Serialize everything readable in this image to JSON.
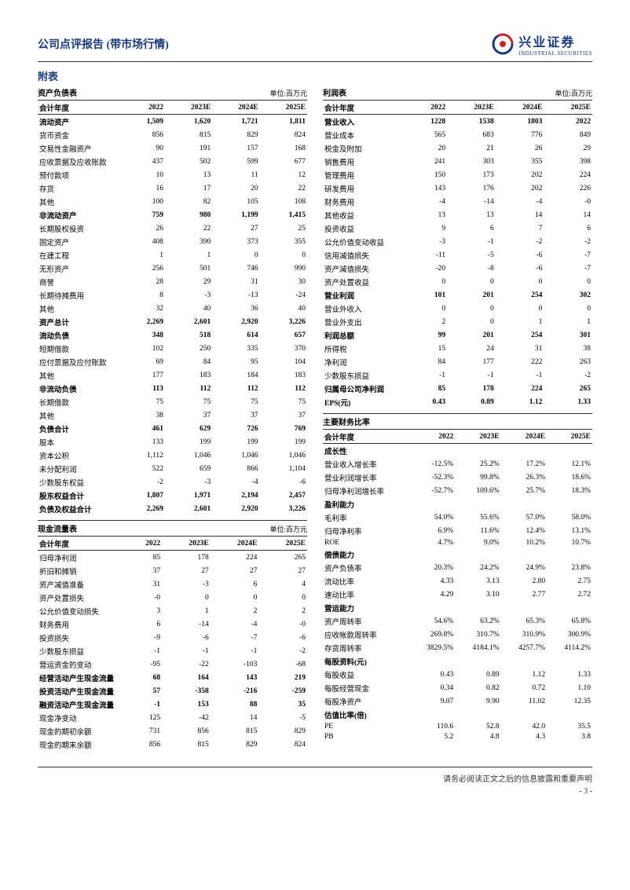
{
  "header": {
    "title": "公司点评报告 (带市场行情)",
    "logo_cn": "兴业证券",
    "logo_en": "INDUSTRIAL SECURITIES"
  },
  "appendix_title": "附表",
  "unit_label": "单位:百万元",
  "years": [
    "会计年度",
    "2022",
    "2023E",
    "2024E",
    "2025E"
  ],
  "balance_sheet": {
    "title": "资产负债表",
    "rows": [
      {
        "b": 1,
        "c": [
          "流动资产",
          "1,509",
          "1,620",
          "1,721",
          "1,811"
        ]
      },
      {
        "c": [
          "货币资金",
          "856",
          "815",
          "829",
          "824"
        ]
      },
      {
        "c": [
          "交易性金融资产",
          "90",
          "191",
          "157",
          "168"
        ]
      },
      {
        "c": [
          "应收票据及应收账款",
          "437",
          "502",
          "599",
          "677"
        ]
      },
      {
        "c": [
          "预付款项",
          "10",
          "13",
          "11",
          "12"
        ]
      },
      {
        "c": [
          "存货",
          "16",
          "17",
          "20",
          "22"
        ]
      },
      {
        "c": [
          "其他",
          "100",
          "82",
          "105",
          "108"
        ]
      },
      {
        "b": 1,
        "c": [
          "非流动资产",
          "759",
          "980",
          "1,199",
          "1,415"
        ]
      },
      {
        "c": [
          "长期股权投资",
          "26",
          "22",
          "27",
          "25"
        ]
      },
      {
        "c": [
          "固定资产",
          "408",
          "390",
          "373",
          "355"
        ]
      },
      {
        "c": [
          "在建工程",
          "1",
          "1",
          "0",
          "0"
        ]
      },
      {
        "c": [
          "无形资产",
          "256",
          "501",
          "746",
          "990"
        ]
      },
      {
        "c": [
          "商誉",
          "28",
          "29",
          "31",
          "30"
        ]
      },
      {
        "c": [
          "长期待摊费用",
          "8",
          "-3",
          "-13",
          "-24"
        ]
      },
      {
        "c": [
          "其他",
          "32",
          "40",
          "36",
          "40"
        ]
      },
      {
        "b": 1,
        "c": [
          "资产总计",
          "2,269",
          "2,601",
          "2,920",
          "3,226"
        ]
      },
      {
        "b": 1,
        "c": [
          "流动负债",
          "348",
          "518",
          "614",
          "657"
        ]
      },
      {
        "c": [
          "短期借款",
          "102",
          "250",
          "335",
          "370"
        ]
      },
      {
        "c": [
          "应付票据及应付账款",
          "69",
          "84",
          "95",
          "104"
        ]
      },
      {
        "c": [
          "其他",
          "177",
          "183",
          "184",
          "183"
        ]
      },
      {
        "b": 1,
        "c": [
          "非流动负债",
          "113",
          "112",
          "112",
          "112"
        ]
      },
      {
        "c": [
          "长期借款",
          "75",
          "75",
          "75",
          "75"
        ]
      },
      {
        "c": [
          "其他",
          "38",
          "37",
          "37",
          "37"
        ]
      },
      {
        "b": 1,
        "c": [
          "负债合计",
          "461",
          "629",
          "726",
          "769"
        ]
      },
      {
        "c": [
          "股本",
          "133",
          "199",
          "199",
          "199"
        ]
      },
      {
        "c": [
          "资本公积",
          "1,112",
          "1,046",
          "1,046",
          "1,046"
        ]
      },
      {
        "c": [
          "未分配利润",
          "522",
          "659",
          "866",
          "1,104"
        ]
      },
      {
        "c": [
          "少数股东权益",
          "-2",
          "-3",
          "-4",
          "-6"
        ]
      },
      {
        "b": 1,
        "c": [
          "股东权益合计",
          "1,807",
          "1,971",
          "2,194",
          "2,457"
        ]
      },
      {
        "b": 1,
        "c": [
          "负债及权益合计",
          "2,269",
          "2,601",
          "2,920",
          "3,226"
        ]
      }
    ]
  },
  "cash_flow": {
    "title": "现金流量表",
    "rows": [
      {
        "c": [
          "归母净利润",
          "85",
          "178",
          "224",
          "265"
        ]
      },
      {
        "c": [
          "折旧和摊销",
          "37",
          "27",
          "27",
          "27"
        ]
      },
      {
        "c": [
          "资产减值准备",
          "31",
          "-3",
          "6",
          "4"
        ]
      },
      {
        "c": [
          "资产处置损失",
          "-0",
          "0",
          "0",
          "0"
        ]
      },
      {
        "c": [
          "公允价值变动损失",
          "3",
          "1",
          "2",
          "2"
        ]
      },
      {
        "c": [
          "财务费用",
          "6",
          "-14",
          "-4",
          "-0"
        ]
      },
      {
        "c": [
          "投资损失",
          "-9",
          "-6",
          "-7",
          "-6"
        ]
      },
      {
        "c": [
          "少数股东损益",
          "-1",
          "-1",
          "-1",
          "-2"
        ]
      },
      {
        "c": [
          "营运资金的变动",
          "-95",
          "-22",
          "-103",
          "-68"
        ]
      },
      {
        "b": 1,
        "c": [
          "经营活动产生现金流量",
          "68",
          "164",
          "143",
          "219"
        ]
      },
      {
        "b": 1,
        "c": [
          "投资活动产生现金流量",
          "57",
          "-358",
          "-216",
          "-259"
        ]
      },
      {
        "b": 1,
        "c": [
          "融资活动产生现金流量",
          "-1",
          "153",
          "88",
          "35"
        ]
      },
      {
        "c": [
          "现金净变动",
          "125",
          "-42",
          "14",
          "-5"
        ]
      },
      {
        "c": [
          "现金的期初余额",
          "731",
          "856",
          "815",
          "829"
        ]
      },
      {
        "c": [
          "现金的期末余额",
          "856",
          "815",
          "829",
          "824"
        ]
      }
    ]
  },
  "income_statement": {
    "title": "利润表",
    "rows": [
      {
        "b": 1,
        "c": [
          "营业收入",
          "1228",
          "1538",
          "1803",
          "2022"
        ]
      },
      {
        "c": [
          "营业成本",
          "565",
          "683",
          "776",
          "849"
        ]
      },
      {
        "c": [
          "税金及附加",
          "20",
          "21",
          "26",
          "29"
        ]
      },
      {
        "c": [
          "销售费用",
          "241",
          "303",
          "355",
          "398"
        ]
      },
      {
        "c": [
          "管理费用",
          "150",
          "173",
          "202",
          "224"
        ]
      },
      {
        "c": [
          "研发费用",
          "143",
          "176",
          "202",
          "226"
        ]
      },
      {
        "c": [
          "财务费用",
          "-4",
          "-14",
          "-4",
          "-0"
        ]
      },
      {
        "c": [
          "其他收益",
          "13",
          "13",
          "14",
          "14"
        ]
      },
      {
        "c": [
          "投资收益",
          "9",
          "6",
          "7",
          "6"
        ]
      },
      {
        "c": [
          "公允价值变动收益",
          "-3",
          "-1",
          "-2",
          "-2"
        ]
      },
      {
        "c": [
          "信用减值损失",
          "-11",
          "-5",
          "-6",
          "-7"
        ]
      },
      {
        "c": [
          "资产减值损失",
          "-20",
          "-8",
          "-6",
          "-7"
        ]
      },
      {
        "c": [
          "资产处置收益",
          "0",
          "0",
          "0",
          "0"
        ]
      },
      {
        "b": 1,
        "c": [
          "营业利润",
          "101",
          "201",
          "254",
          "302"
        ]
      },
      {
        "c": [
          "营业外收入",
          "0",
          "0",
          "0",
          "0"
        ]
      },
      {
        "c": [
          "营业外支出",
          "2",
          "0",
          "1",
          "1"
        ]
      },
      {
        "b": 1,
        "c": [
          "利润总额",
          "99",
          "201",
          "254",
          "301"
        ]
      },
      {
        "c": [
          "所得税",
          "15",
          "24",
          "31",
          "38"
        ]
      },
      {
        "c": [
          "净利润",
          "84",
          "177",
          "222",
          "263"
        ]
      },
      {
        "c": [
          "少数股东损益",
          "-1",
          "-1",
          "-1",
          "-2"
        ]
      },
      {
        "b": 1,
        "c": [
          "归属母公司净利润",
          "85",
          "178",
          "224",
          "265"
        ]
      },
      {
        "b": 1,
        "c": [
          "EPS(元)",
          "0.43",
          "0.89",
          "1.12",
          "1.33"
        ]
      }
    ]
  },
  "ratios": {
    "title": "主要财务比率",
    "rows": [
      {
        "b": 1,
        "c": [
          "成长性",
          "",
          "",
          "",
          ""
        ]
      },
      {
        "c": [
          "营业收入增长率",
          "-12.5%",
          "25.2%",
          "17.2%",
          "12.1%"
        ]
      },
      {
        "c": [
          "营业利润增长率",
          "-52.3%",
          "99.8%",
          "26.3%",
          "18.6%"
        ]
      },
      {
        "c": [
          "归母净利润增长率",
          "-52.7%",
          "109.6%",
          "25.7%",
          "18.3%"
        ]
      },
      {
        "b": 1,
        "c": [
          "盈利能力",
          "",
          "",
          "",
          ""
        ]
      },
      {
        "c": [
          "毛利率",
          "54.0%",
          "55.6%",
          "57.0%",
          "58.0%"
        ]
      },
      {
        "c": [
          "归母净利率",
          "6.9%",
          "11.6%",
          "12.4%",
          "13.1%"
        ]
      },
      {
        "c": [
          "ROE",
          "4.7%",
          "9.0%",
          "10.2%",
          "10.7%"
        ]
      },
      {
        "b": 1,
        "c": [
          "偿债能力",
          "",
          "",
          "",
          ""
        ]
      },
      {
        "c": [
          "资产负债率",
          "20.3%",
          "24.2%",
          "24.9%",
          "23.8%"
        ]
      },
      {
        "c": [
          "流动比率",
          "4.33",
          "3.13",
          "2.80",
          "2.75"
        ]
      },
      {
        "c": [
          "速动比率",
          "4.29",
          "3.10",
          "2.77",
          "2.72"
        ]
      },
      {
        "b": 1,
        "c": [
          "营运能力",
          "",
          "",
          "",
          ""
        ]
      },
      {
        "c": [
          "资产周转率",
          "54.6%",
          "63.2%",
          "65.3%",
          "65.8%"
        ]
      },
      {
        "c": [
          "应收帐款周转率",
          "269.8%",
          "310.7%",
          "310.9%",
          "300.9%"
        ]
      },
      {
        "c": [
          "存货周转率",
          "3829.5%",
          "4184.1%",
          "4257.7%",
          "4114.2%"
        ]
      },
      {
        "b": 1,
        "c": [
          "每股资料(元)",
          "",
          "",
          "",
          ""
        ]
      },
      {
        "c": [
          "每股收益",
          "0.43",
          "0.89",
          "1.12",
          "1.33"
        ]
      },
      {
        "c": [
          "每股经营现金",
          "0.34",
          "0.82",
          "0.72",
          "1.10"
        ]
      },
      {
        "c": [
          "每股净资产",
          "9.07",
          "9.90",
          "11.02",
          "12.35"
        ]
      },
      {
        "b": 1,
        "c": [
          "估值比率(倍)",
          "",
          "",
          "",
          ""
        ]
      },
      {
        "c": [
          "PE",
          "110.6",
          "52.8",
          "42.0",
          "35.5"
        ]
      },
      {
        "c": [
          "PB",
          "5.2",
          "4.8",
          "4.3",
          "3.8"
        ]
      }
    ]
  },
  "footer": {
    "disclaimer": "请务必阅读正文之后的信息披露和重要声明",
    "page": "- 3 -"
  },
  "colors": {
    "brand_blue": "#1a3a7a",
    "brand_red": "#c1272d",
    "text": "#000000",
    "background": "#ffffff",
    "border": "#333333"
  }
}
